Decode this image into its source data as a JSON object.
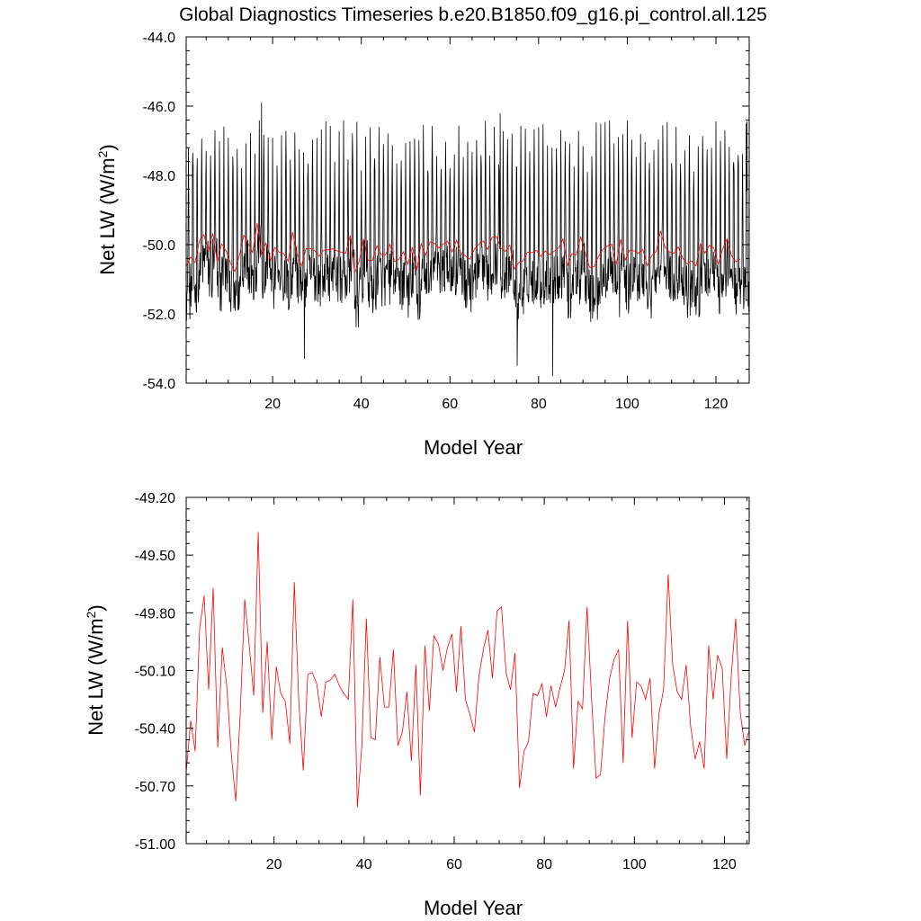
{
  "title": "Global Diagnostics Timeseries b.e20.B1850.f09_g16.pi_control.all.125",
  "chart_data": [
    {
      "type": "line",
      "xlabel": "Model Year",
      "ylabel": "Net LW (W/m",
      "ylabel_sup": "2",
      "ylabel_close": ")",
      "xlim": [
        0.5,
        127.5
      ],
      "ylim": [
        -54.0,
        -44.0
      ],
      "xticks": [
        20,
        40,
        60,
        80,
        100,
        120
      ],
      "xtick_labels": [
        "20",
        "40",
        "60",
        "80",
        "100",
        "120"
      ],
      "yticks": [
        -44.0,
        -46.0,
        -48.0,
        -50.0,
        -52.0,
        -54.0
      ],
      "ytick_labels": [
        "-44.0",
        "-46.0",
        "-48.0",
        "-50.0",
        "-52.0",
        "-54.0"
      ],
      "grid": false,
      "series": [
        {
          "description": "monthly global mean (black)",
          "color": "#000000",
          "seed": 12345,
          "x_start": 0.5,
          "x_step": 0.0833333,
          "count": 1524,
          "peak_month": 6,
          "peak_mean": -47.2,
          "trough_mean": -51.8,
          "extremes": [
            {
              "x": 17.5,
              "y": -45.9
            },
            {
              "x": 83.2,
              "y": -53.8
            },
            {
              "x": 75.2,
              "y": -53.5
            },
            {
              "x": 27.2,
              "y": -53.3
            },
            {
              "x": 71.3,
              "y": -46.2
            },
            {
              "x": 126.8,
              "y": -46.5
            }
          ]
        },
        {
          "description": "annual mean (red)",
          "color": "#ff0000",
          "ref": "annual"
        }
      ]
    },
    {
      "type": "line",
      "xlabel": "Model Year",
      "ylabel": "Net LW (W/m",
      "ylabel_sup": "2",
      "ylabel_close": ")",
      "xlim": [
        0.5,
        125.5
      ],
      "ylim": [
        -51.0,
        -49.2
      ],
      "xticks": [
        20,
        40,
        60,
        80,
        100,
        120
      ],
      "xtick_labels": [
        "20",
        "40",
        "60",
        "80",
        "100",
        "120"
      ],
      "yticks": [
        -49.2,
        -49.5,
        -49.8,
        -50.1,
        -50.4,
        -50.7,
        -51.0
      ],
      "ytick_labels": [
        "-49.20",
        "-49.50",
        "-49.80",
        "-50.10",
        "-50.40",
        "-50.70",
        "-51.00"
      ],
      "grid": false,
      "series": [
        {
          "description": "annual mean (red)",
          "color": "#ff0000",
          "x_start": 0.5,
          "x_step": 1,
          "values": [
            -50.63,
            -50.36,
            -50.52,
            -49.88,
            -49.71,
            -50.2,
            -49.67,
            -50.5,
            -49.98,
            -50.18,
            -50.53,
            -50.78,
            -50.32,
            -49.73,
            -49.97,
            -50.23,
            -49.38,
            -50.32,
            -49.95,
            -50.46,
            -50.08,
            -50.22,
            -50.26,
            -50.48,
            -49.64,
            -50.26,
            -50.62,
            -50.12,
            -50.11,
            -50.17,
            -50.34,
            -50.16,
            -50.15,
            -50.12,
            -50.18,
            -50.22,
            -50.25,
            -49.73,
            -50.81,
            -50.49,
            -49.83,
            -50.45,
            -50.46,
            -50.03,
            -50.29,
            -50.29,
            -49.99,
            -50.49,
            -50.42,
            -50.21,
            -50.57,
            -50.07,
            -50.75,
            -49.97,
            -50.31,
            -49.92,
            -49.96,
            -50.1,
            -49.98,
            -49.91,
            -50.21,
            -49.87,
            -50.25,
            -50.33,
            -50.42,
            -50.13,
            -49.99,
            -49.89,
            -50.14,
            -49.79,
            -49.77,
            -50.11,
            -50.2,
            -50.01,
            -50.71,
            -50.52,
            -50.47,
            -50.22,
            -50.23,
            -50.17,
            -50.34,
            -50.18,
            -50.29,
            -50.19,
            -50.1,
            -49.84,
            -50.61,
            -50.26,
            -50.3,
            -49.77,
            -50.24,
            -50.66,
            -50.64,
            -50.34,
            -50.14,
            -50.04,
            -49.99,
            -50.58,
            -49.84,
            -50.45,
            -50.16,
            -50.18,
            -50.25,
            -50.14,
            -50.61,
            -50.32,
            -50.2,
            -49.6,
            -50.07,
            -50.21,
            -50.25,
            -50.07,
            -50.39,
            -50.56,
            -50.47,
            -50.61,
            -49.97,
            -50.25,
            -50.02,
            -50.09,
            -50.56,
            -50.13,
            -49.83,
            -50.32,
            -50.49,
            -50.41
          ]
        }
      ]
    }
  ]
}
